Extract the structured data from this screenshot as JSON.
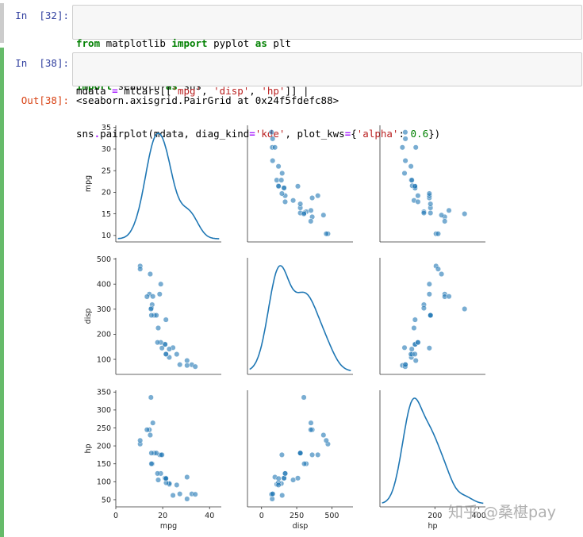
{
  "cells": [
    {
      "prompt": "In  [32]:",
      "lines": [
        [
          {
            "t": "from",
            "c": "kw"
          },
          {
            "t": " matplotlib "
          },
          {
            "t": "import",
            "c": "kw"
          },
          {
            "t": " pyplot "
          },
          {
            "t": "as",
            "c": "kw"
          },
          {
            "t": " plt"
          }
        ],
        [
          {
            "t": "import",
            "c": "kw"
          },
          {
            "t": " seaborn "
          },
          {
            "t": "as",
            "c": "kw"
          },
          {
            "t": " sns"
          }
        ]
      ]
    },
    {
      "prompt": "In  [38]:",
      "lines": [
        [
          {
            "t": "mdata "
          },
          {
            "t": "=",
            "c": "op"
          },
          {
            "t": " mtcars[["
          },
          {
            "t": "'mpg'",
            "c": "str"
          },
          {
            "t": ", "
          },
          {
            "t": "'disp'",
            "c": "str"
          },
          {
            "t": ", "
          },
          {
            "t": "'hp'",
            "c": "str"
          },
          {
            "t": "]] |"
          }
        ],
        [
          {
            "t": "sns"
          },
          {
            "t": ".",
            "c": "op"
          },
          {
            "t": "pairplot(mdata, diag_kind"
          },
          {
            "t": "=",
            "c": "op"
          },
          {
            "t": "'kde'",
            "c": "str"
          },
          {
            "t": ", plot_kws"
          },
          {
            "t": "=",
            "c": "op"
          },
          {
            "t": "{"
          },
          {
            "t": "'alpha'",
            "c": "str"
          },
          {
            "t": ": "
          },
          {
            "t": "0.6",
            "c": "num"
          },
          {
            "t": "})"
          }
        ]
      ],
      "out_prompt": "Out[38]:",
      "out_text": "<seaborn.axisgrid.PairGrid at 0x24f5fdefc88>"
    }
  ],
  "watermark": "知乎 @桑椹pay",
  "chart_data": {
    "type": "scatter",
    "variables": [
      "mpg",
      "disp",
      "hp"
    ],
    "diag_kind": "kde",
    "point_color": "#1f77b4",
    "alpha": 0.6,
    "ticks": {
      "mpg": [
        0,
        20,
        40
      ],
      "mpg_y": [
        10,
        15,
        20,
        25,
        30,
        35
      ],
      "disp": [
        0,
        250,
        500
      ],
      "disp_y": [
        100,
        200,
        300,
        400,
        500
      ],
      "hp": [
        200,
        400
      ],
      "hp_y": [
        50,
        100,
        150,
        200,
        250,
        300,
        350
      ]
    },
    "ranges": {
      "mpg": [
        0,
        45
      ],
      "disp": [
        -100,
        650
      ],
      "hp": [
        -50,
        430
      ]
    },
    "yranges": {
      "mpg": [
        8.5,
        35.5
      ],
      "disp": [
        40,
        505
      ],
      "hp": [
        30,
        355
      ]
    },
    "data": [
      {
        "mpg": 21.0,
        "disp": 160,
        "hp": 110
      },
      {
        "mpg": 21.0,
        "disp": 160,
        "hp": 110
      },
      {
        "mpg": 22.8,
        "disp": 108,
        "hp": 93
      },
      {
        "mpg": 21.4,
        "disp": 258,
        "hp": 110
      },
      {
        "mpg": 18.7,
        "disp": 360,
        "hp": 175
      },
      {
        "mpg": 18.1,
        "disp": 225,
        "hp": 105
      },
      {
        "mpg": 14.3,
        "disp": 360,
        "hp": 245
      },
      {
        "mpg": 24.4,
        "disp": 146.7,
        "hp": 62
      },
      {
        "mpg": 22.8,
        "disp": 140.8,
        "hp": 95
      },
      {
        "mpg": 19.2,
        "disp": 167.6,
        "hp": 123
      },
      {
        "mpg": 17.8,
        "disp": 167.6,
        "hp": 123
      },
      {
        "mpg": 16.4,
        "disp": 275.8,
        "hp": 180
      },
      {
        "mpg": 17.3,
        "disp": 275.8,
        "hp": 180
      },
      {
        "mpg": 15.2,
        "disp": 275.8,
        "hp": 180
      },
      {
        "mpg": 10.4,
        "disp": 472,
        "hp": 205
      },
      {
        "mpg": 10.4,
        "disp": 460,
        "hp": 215
      },
      {
        "mpg": 14.7,
        "disp": 440,
        "hp": 230
      },
      {
        "mpg": 32.4,
        "disp": 78.7,
        "hp": 66
      },
      {
        "mpg": 30.4,
        "disp": 75.7,
        "hp": 52
      },
      {
        "mpg": 33.9,
        "disp": 71.1,
        "hp": 65
      },
      {
        "mpg": 21.5,
        "disp": 120.1,
        "hp": 97
      },
      {
        "mpg": 15.5,
        "disp": 318,
        "hp": 150
      },
      {
        "mpg": 15.2,
        "disp": 304,
        "hp": 150
      },
      {
        "mpg": 13.3,
        "disp": 350,
        "hp": 245
      },
      {
        "mpg": 19.2,
        "disp": 400,
        "hp": 175
      },
      {
        "mpg": 27.3,
        "disp": 79,
        "hp": 66
      },
      {
        "mpg": 26.0,
        "disp": 120.3,
        "hp": 91
      },
      {
        "mpg": 30.4,
        "disp": 95.1,
        "hp": 113
      },
      {
        "mpg": 15.8,
        "disp": 351,
        "hp": 264
      },
      {
        "mpg": 19.7,
        "disp": 145,
        "hp": 175
      },
      {
        "mpg": 15.0,
        "disp": 301,
        "hp": 335
      },
      {
        "mpg": 21.4,
        "disp": 121,
        "hp": 109
      }
    ]
  }
}
